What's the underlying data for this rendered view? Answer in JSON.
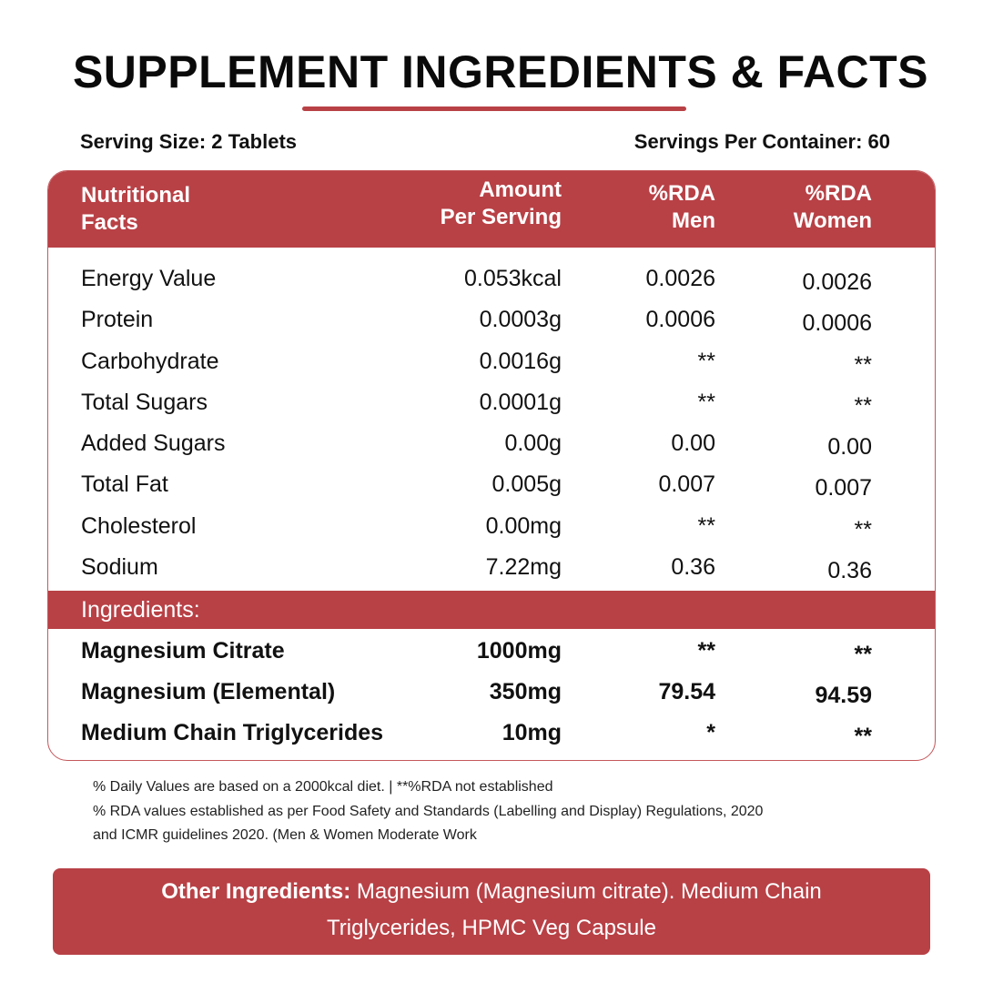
{
  "title": "SUPPLEMENT INGREDIENTS & FACTS",
  "serving_size": "Serving Size: 2 Tablets",
  "servings_per_container": "Servings Per Container: 60",
  "header": {
    "name_line1": "Nutritional",
    "name_line2": "Facts",
    "amount_line1": "Amount",
    "amount_line2": "Per Serving",
    "men_line1": "%RDA",
    "men_line2": "Men",
    "women_line1": "%RDA",
    "women_line2": "Women"
  },
  "nutrition_rows": [
    {
      "name": "Energy Value",
      "amount": "0.053kcal",
      "men": "0.0026",
      "women": "0.0026"
    },
    {
      "name": "Protein",
      "amount": "0.0003g",
      "men": "0.0006",
      "women": "0.0006"
    },
    {
      "name": "Carbohydrate",
      "amount": "0.0016g",
      "men": "**",
      "women": "**"
    },
    {
      "name": "Total Sugars",
      "amount": "0.0001g",
      "men": "**",
      "women": "**"
    },
    {
      "name": "Added Sugars",
      "amount": "0.00g",
      "men": "0.00",
      "women": "0.00"
    },
    {
      "name": "Total Fat",
      "amount": "0.005g",
      "men": "0.007",
      "women": "0.007"
    },
    {
      "name": "Cholesterol",
      "amount": "0.00mg",
      "men": "**",
      "women": "**"
    },
    {
      "name": "Sodium",
      "amount": "7.22mg",
      "men": "0.36",
      "women": "0.36"
    }
  ],
  "ingredients_label": "Ingredients:",
  "ingredient_rows": [
    {
      "name": "Magnesium Citrate",
      "amount": "1000mg",
      "men": "**",
      "women": "**"
    },
    {
      "name": "Magnesium (Elemental)",
      "amount": "350mg",
      "men": "79.54",
      "women": "94.59"
    },
    {
      "name": "Medium Chain Triglycerides",
      "amount": "10mg",
      "men": "*",
      "women": "**"
    }
  ],
  "notes": {
    "line1": "% Daily Values are based on a 2000kcal diet.  |   **%RDA not established",
    "line2": "% RDA values established as per Food Safety and Standards (Labelling and Display) Regulations, 2020",
    "line3": "and ICMR guidelines 2020. (Men & Women Moderate Work"
  },
  "other_ingredients": {
    "label": "Other Ingredients:",
    "text": " Magnesium (Magnesium citrate). Medium Chain Triglycerides, HPMC Veg Capsule"
  },
  "colors": {
    "accent": "#b84146",
    "text": "#111111",
    "background": "#ffffff"
  }
}
